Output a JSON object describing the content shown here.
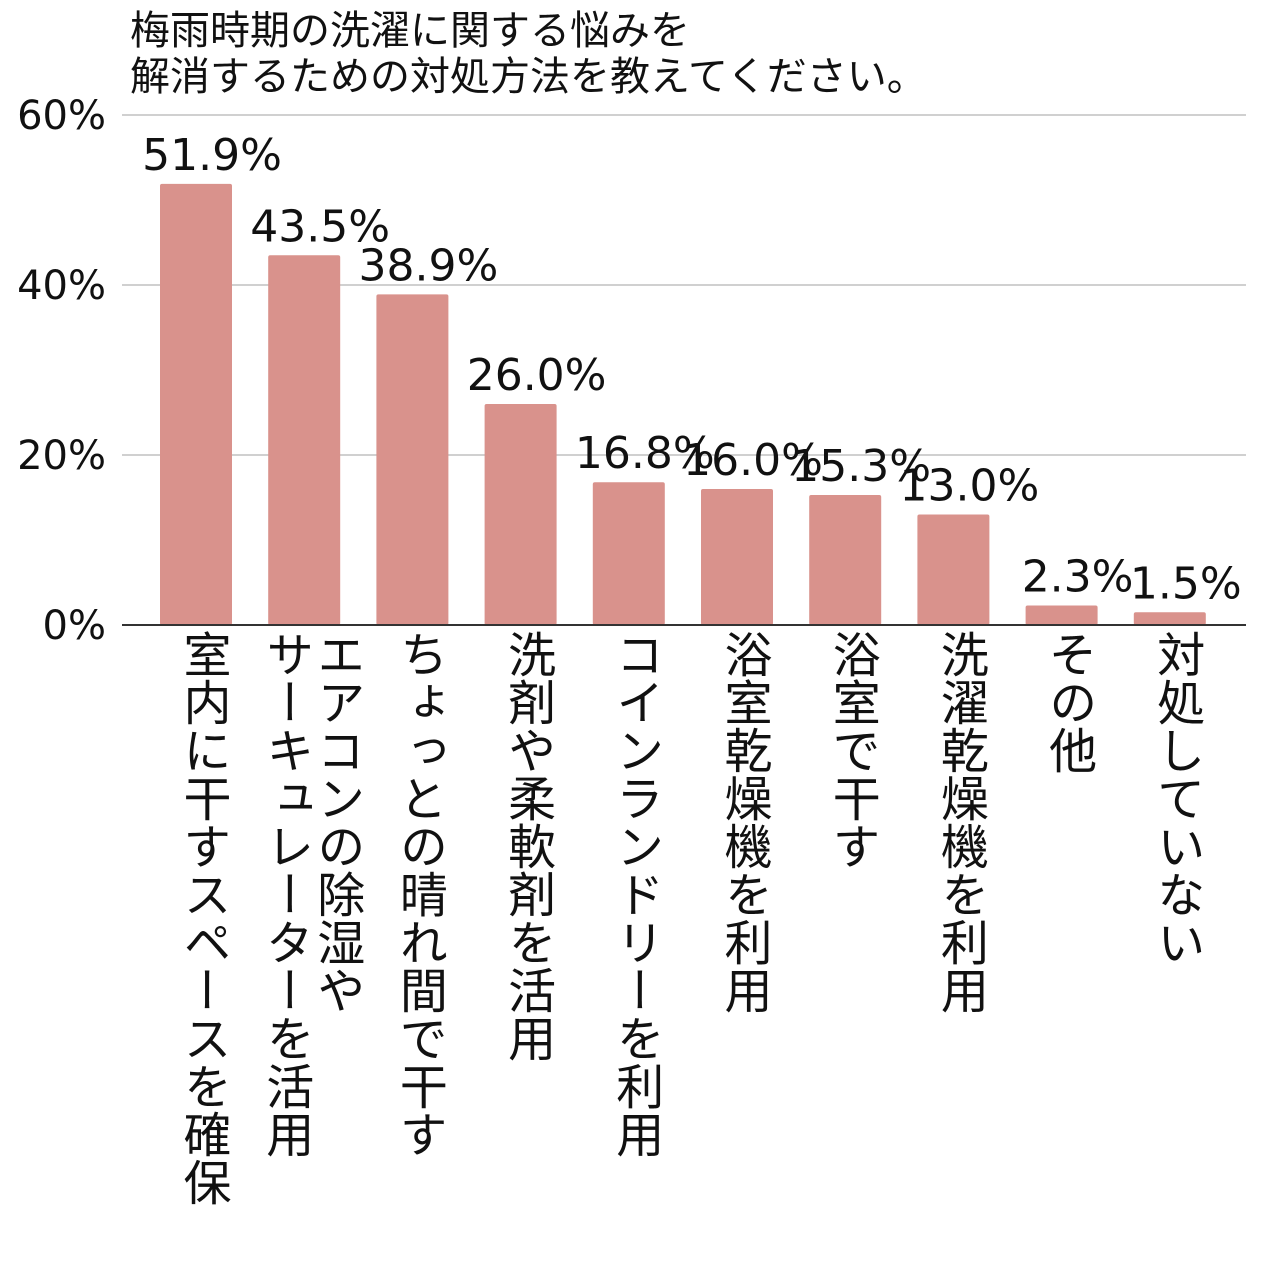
{
  "chart_data": {
    "type": "bar",
    "title": "梅雨時期の洗濯に関する悩みを\n解消するための対処方法を教えてください。",
    "categories": [
      [
        "室内に干すスペースを確保"
      ],
      [
        "エアコンの除湿や",
        "サーキュレーターを活用"
      ],
      [
        "ちょっとの晴れ間で干す"
      ],
      [
        "洗剤や柔軟剤を活用"
      ],
      [
        "コインランドリーを利用"
      ],
      [
        "浴室乾燥機を利用"
      ],
      [
        "浴室で干す"
      ],
      [
        "洗濯乾燥機を利用"
      ],
      [
        "その他"
      ],
      [
        "対処していない"
      ]
    ],
    "values": [
      51.9,
      43.5,
      38.9,
      26.0,
      16.8,
      16.0,
      15.3,
      13.0,
      2.3,
      1.5
    ],
    "value_labels": [
      "51.9%",
      "43.5%",
      "38.9%",
      "26.0%",
      "16.8%",
      "16.0%",
      "15.3%",
      "13.0%",
      "2.3%",
      "1.5%"
    ],
    "ylim": [
      0,
      60
    ],
    "yticks": [
      0,
      20,
      40,
      60
    ],
    "ytick_labels": [
      "0%",
      "20%",
      "40%",
      "60%"
    ],
    "grid": true,
    "colors": {
      "bar": "#d9928c",
      "grid": "#d0d0d0",
      "axis": "#333333"
    }
  }
}
